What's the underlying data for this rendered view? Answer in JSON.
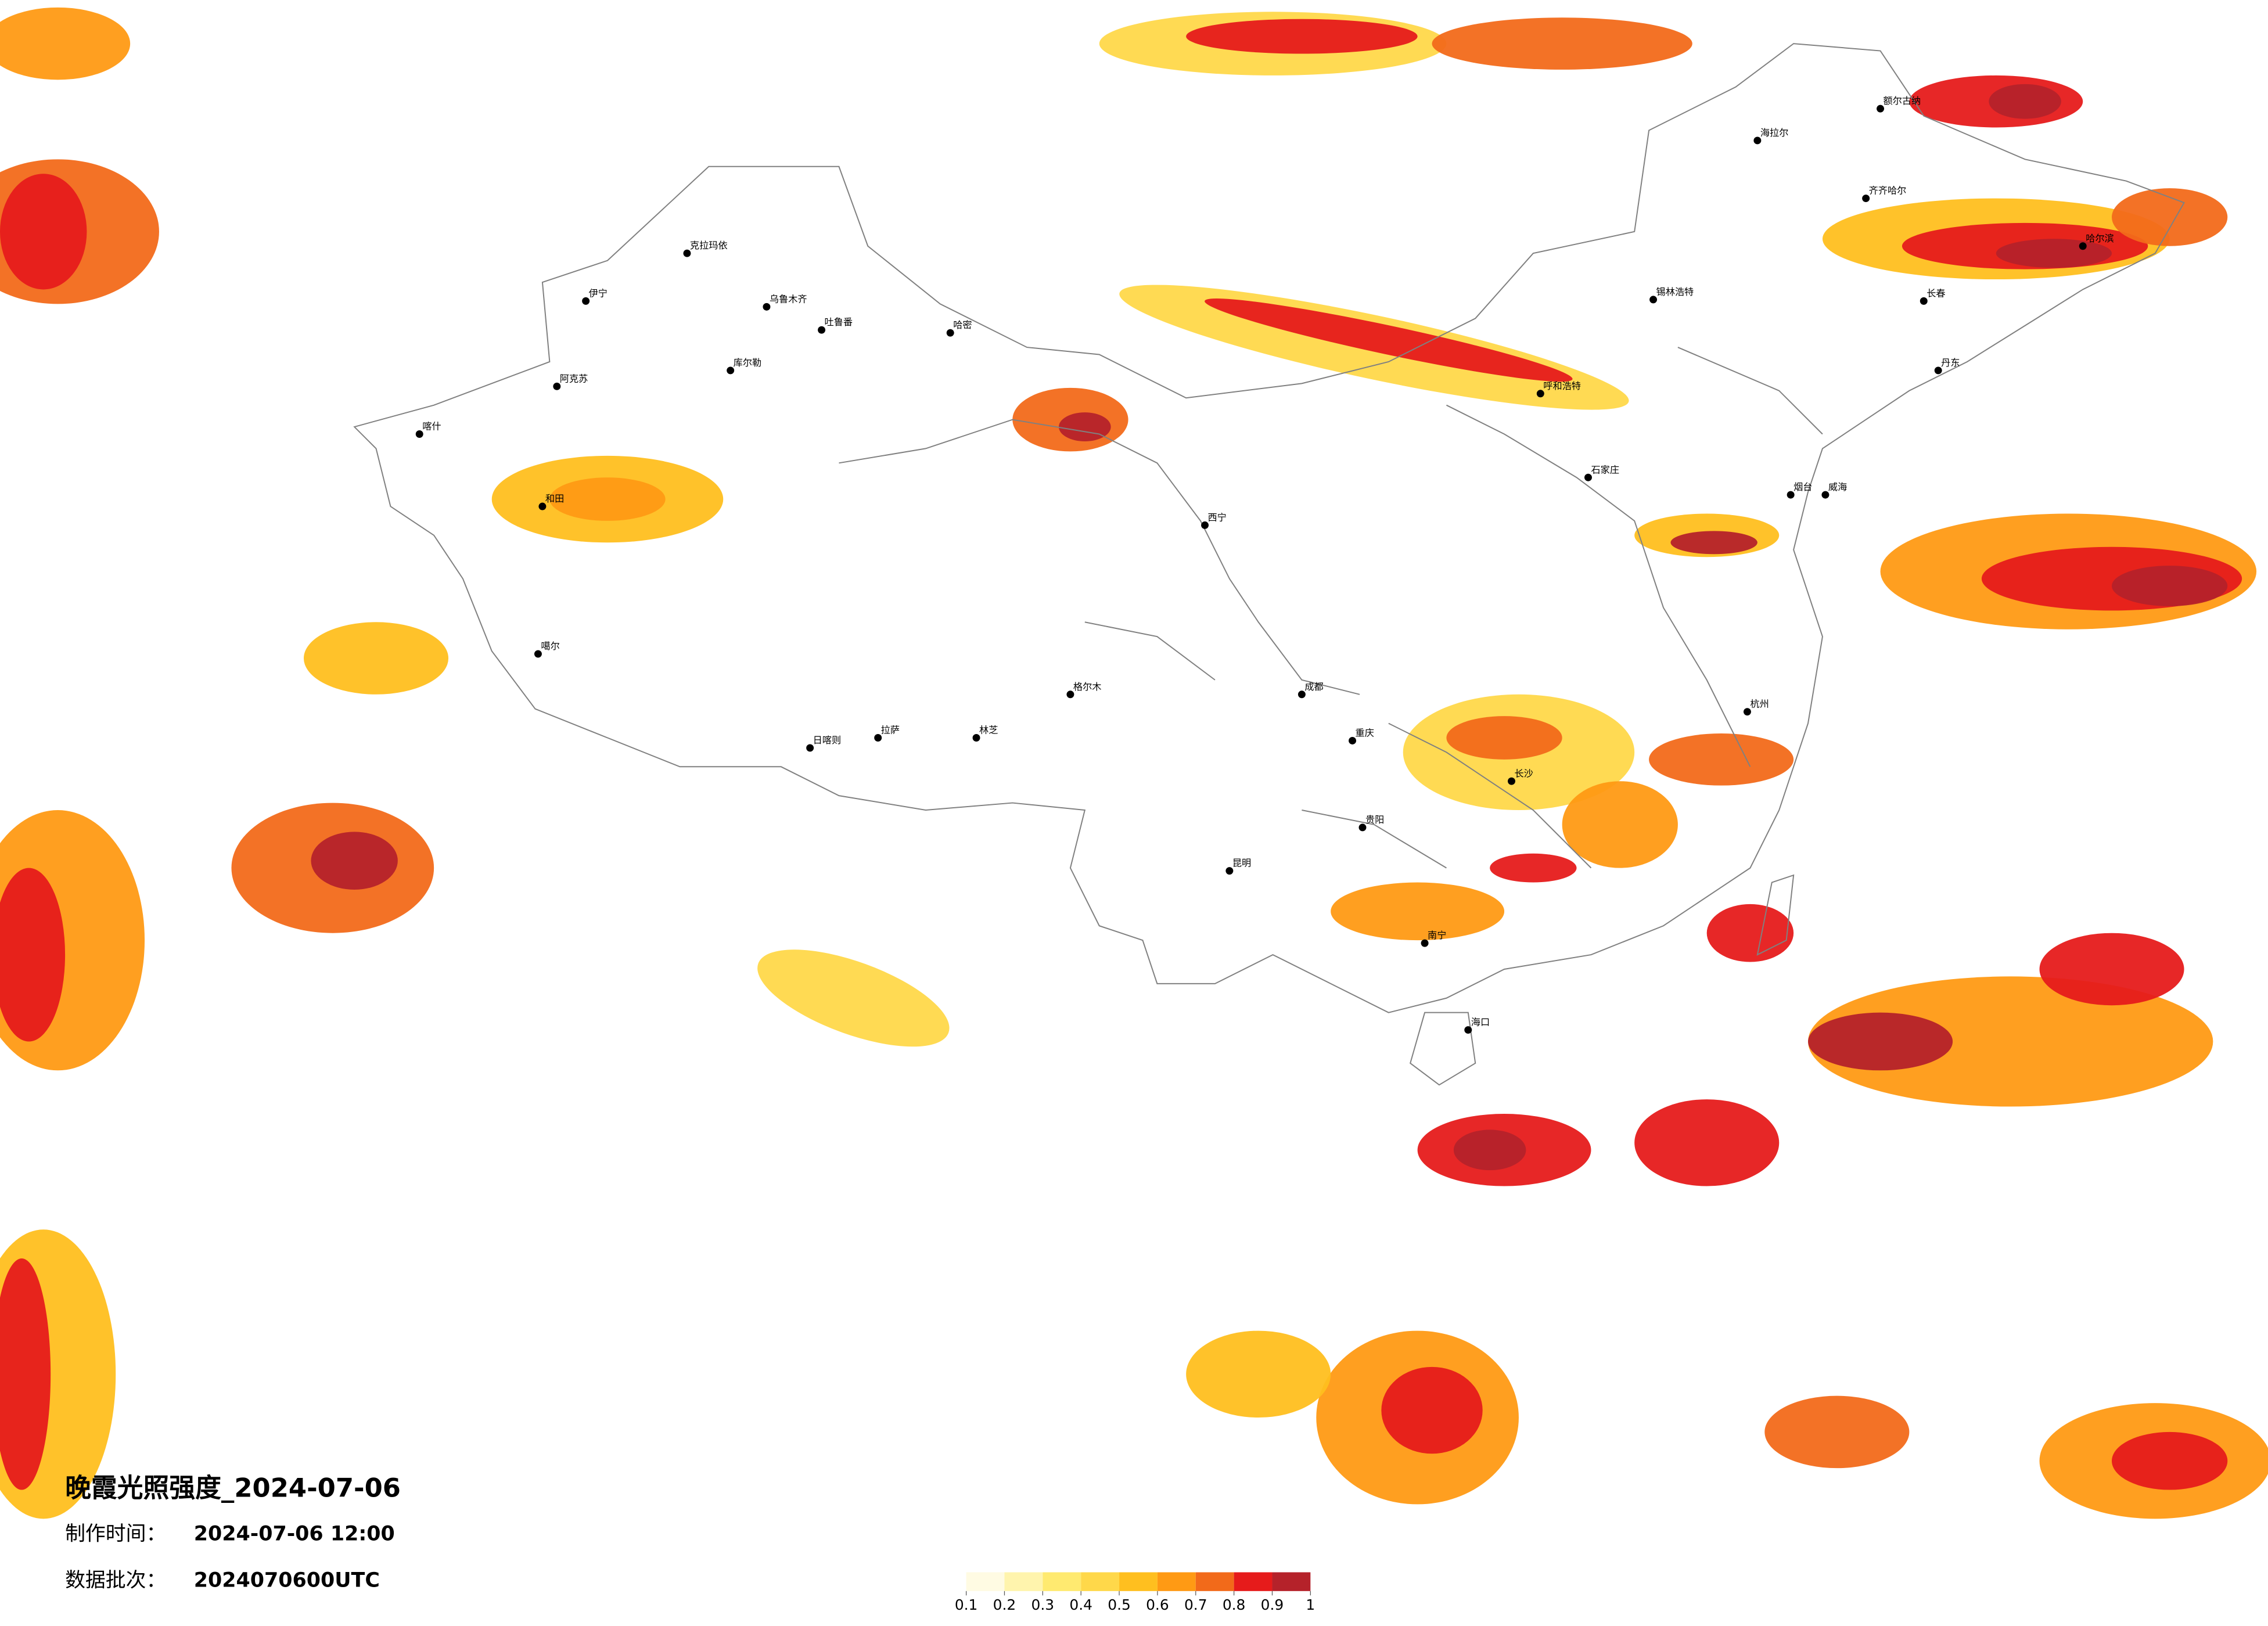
{
  "header": {
    "title": "晚霞光照强度_2024-07-06",
    "time_label": "制作时间：",
    "time_value": "2024-07-06 12:00",
    "batch_label": "数据批次：",
    "batch_value": "2024070600UTC"
  },
  "colorbar": {
    "ticks": [
      0.1,
      0.2,
      0.3,
      0.4,
      0.5,
      0.6,
      0.7,
      0.8,
      0.9,
      1
    ],
    "colors": [
      "#fffbe3",
      "#fff4ad",
      "#ffea70",
      "#ffd84a",
      "#ffbf1f",
      "#ff9a14",
      "#f26a1a",
      "#e61b1b",
      "#b5222a"
    ]
  },
  "cities": [
    "额尔古纳",
    "海拉尔",
    "齐齐哈尔",
    "哈尔滨",
    "长春",
    "锡林浩特",
    "克拉玛依",
    "伊宁",
    "乌鲁木齐",
    "吐鲁番",
    "哈密",
    "库尔勒",
    "阿克苏",
    "喀什",
    "和田",
    "噶尔",
    "日喀则",
    "拉萨",
    "林芝",
    "格尔木",
    "西宁",
    "呼和浩特",
    "石家庄",
    "成都",
    "重庆",
    "贵阳",
    "昆明",
    "南宁",
    "海口",
    "长沙",
    "杭州",
    "烟台",
    "威海",
    "丹东"
  ]
}
